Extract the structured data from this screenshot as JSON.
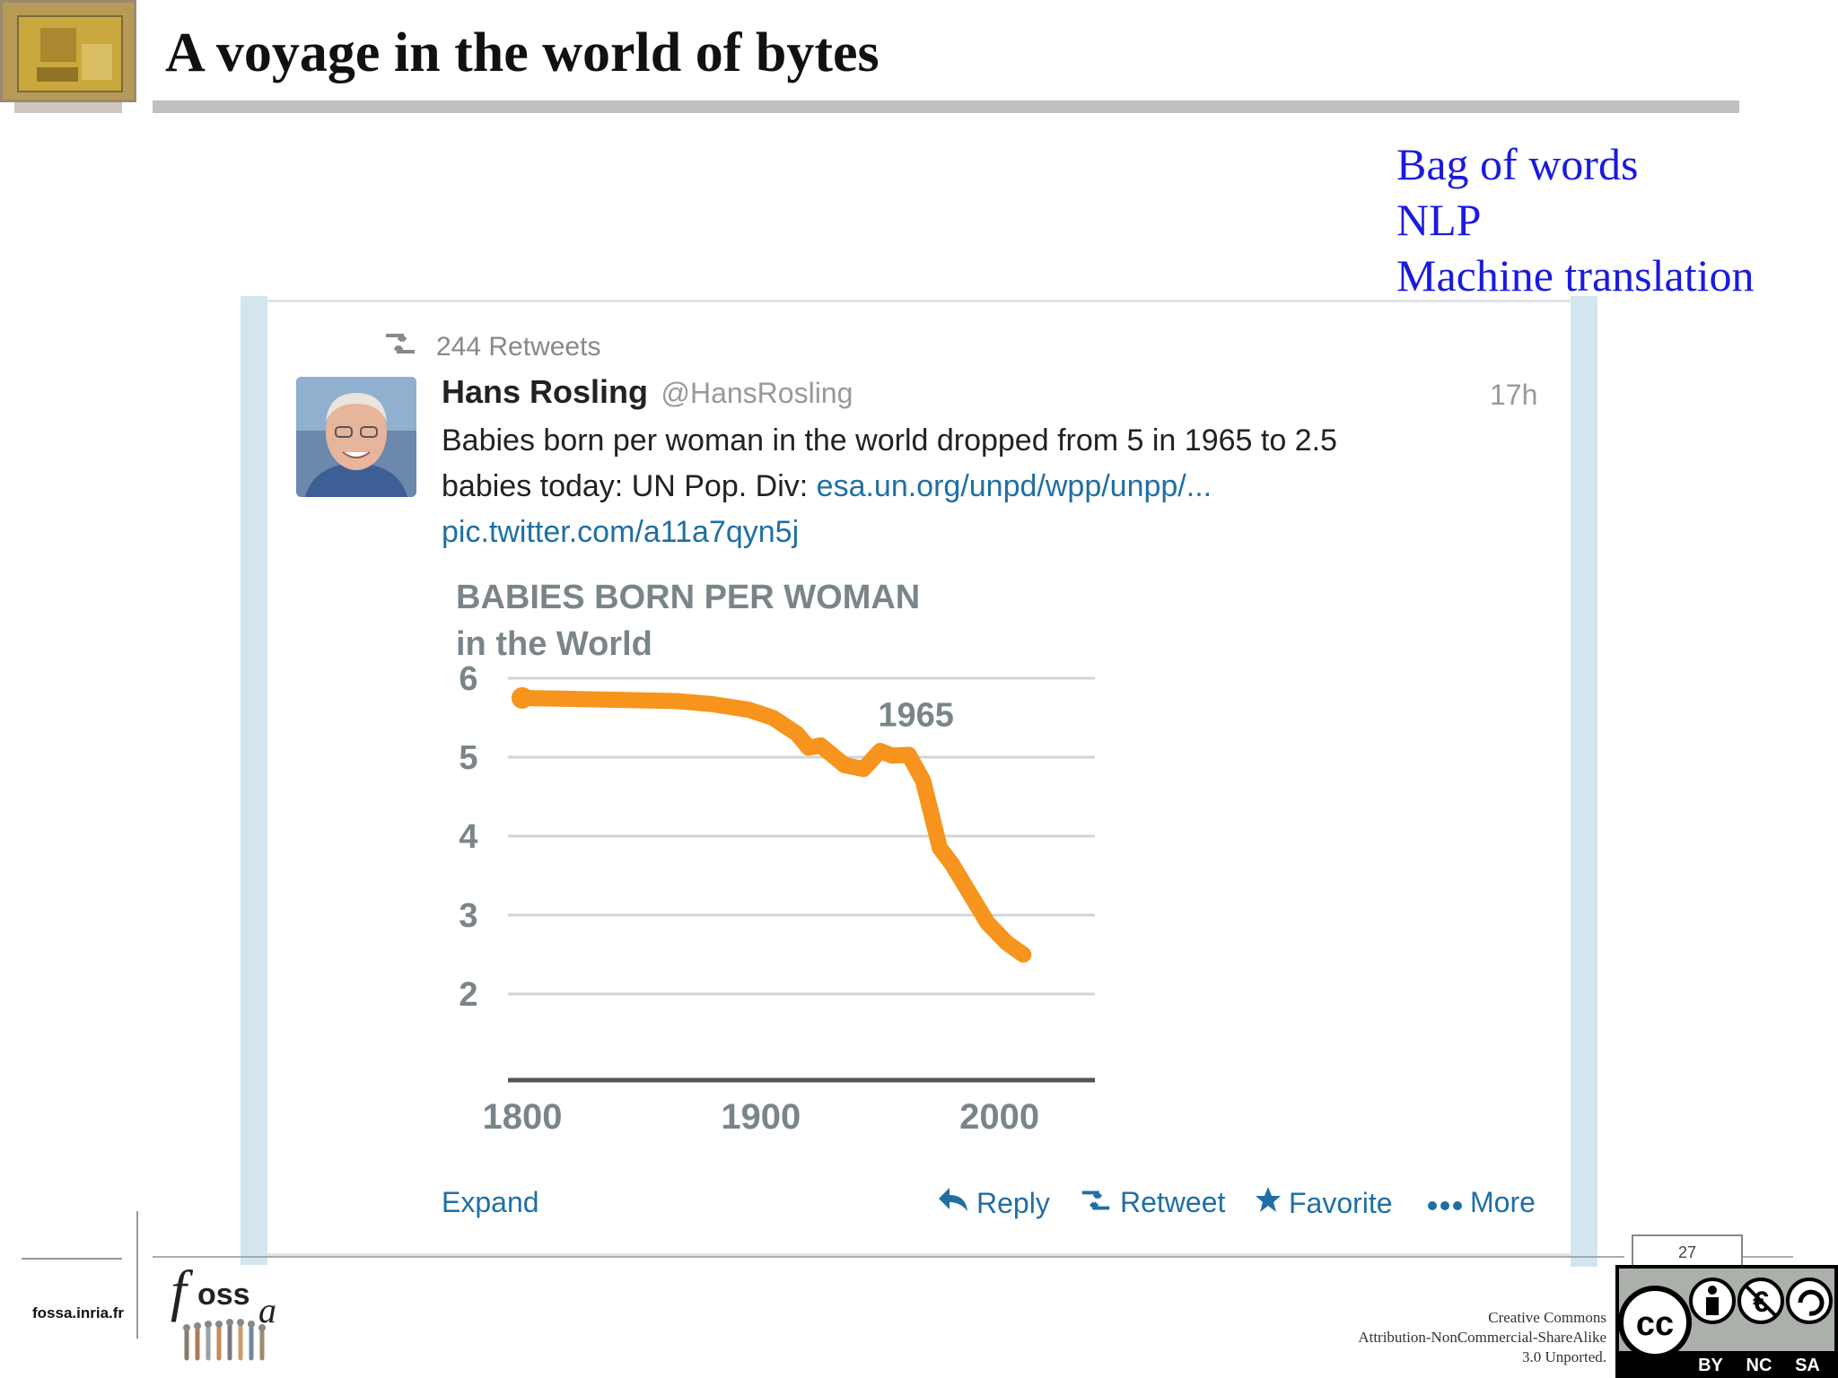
{
  "slide": {
    "title": "A voyage in the world of bytes",
    "keywords": [
      "Bag of words",
      "NLP",
      "Machine translation"
    ],
    "page_number": "27"
  },
  "tweet": {
    "retweet_count_label": "244 Retweets",
    "author_name": "Hans Rosling",
    "author_handle": "@HansRosling",
    "timestamp": "17h",
    "text_line1": "Babies born per woman in the world dropped from 5 in 1965 to  2.5",
    "text_line2_plain": "babies today: UN Pop. Div: ",
    "text_link1": "esa.un.org/unpd/wpp/unpp/...",
    "text_link2": "pic.twitter.com/a11a7qyn5j",
    "actions": {
      "expand": "Expand",
      "reply": "Reply",
      "retweet": "Retweet",
      "favorite": "Favorite",
      "more": "More"
    },
    "icons": [
      "retweet-icon",
      "reply-icon",
      "star-icon",
      "more-dots-icon"
    ]
  },
  "chart_data": {
    "type": "line",
    "title": "BABIES BORN PER WOMAN",
    "subtitle": "in the World",
    "xlabel": "",
    "ylabel": "",
    "x_ticks": [
      1800,
      1900,
      2000
    ],
    "y_ticks": [
      6,
      5,
      4,
      3,
      2
    ],
    "xlim": [
      1794,
      2040
    ],
    "ylim": [
      1,
      6
    ],
    "annotation": {
      "text": "1965",
      "x": 1965,
      "y": 5.55
    },
    "grid": true,
    "line_color": "#f7941d",
    "series": [
      {
        "x": [
          1800,
          1850,
          1865,
          1880,
          1895,
          1905,
          1915,
          1920,
          1925,
          1935,
          1943,
          1950,
          1955,
          1962,
          1968,
          1975,
          1980,
          1988,
          1995,
          2003,
          2010
        ],
        "y": [
          5.75,
          5.72,
          5.71,
          5.67,
          5.6,
          5.5,
          5.3,
          5.12,
          5.15,
          4.9,
          4.85,
          5.08,
          5.02,
          5.03,
          4.7,
          3.85,
          3.65,
          3.25,
          2.9,
          2.65,
          2.5
        ]
      }
    ]
  },
  "footer": {
    "site": "fossa.inria.fr",
    "logo_text": "oss",
    "license_line1": "Creative Commons",
    "license_line2": "Attribution-NonCommercial-ShareAlike",
    "license_line3": "3.0 Unported.",
    "cc_labels": [
      "BY",
      "NC",
      "SA"
    ]
  }
}
